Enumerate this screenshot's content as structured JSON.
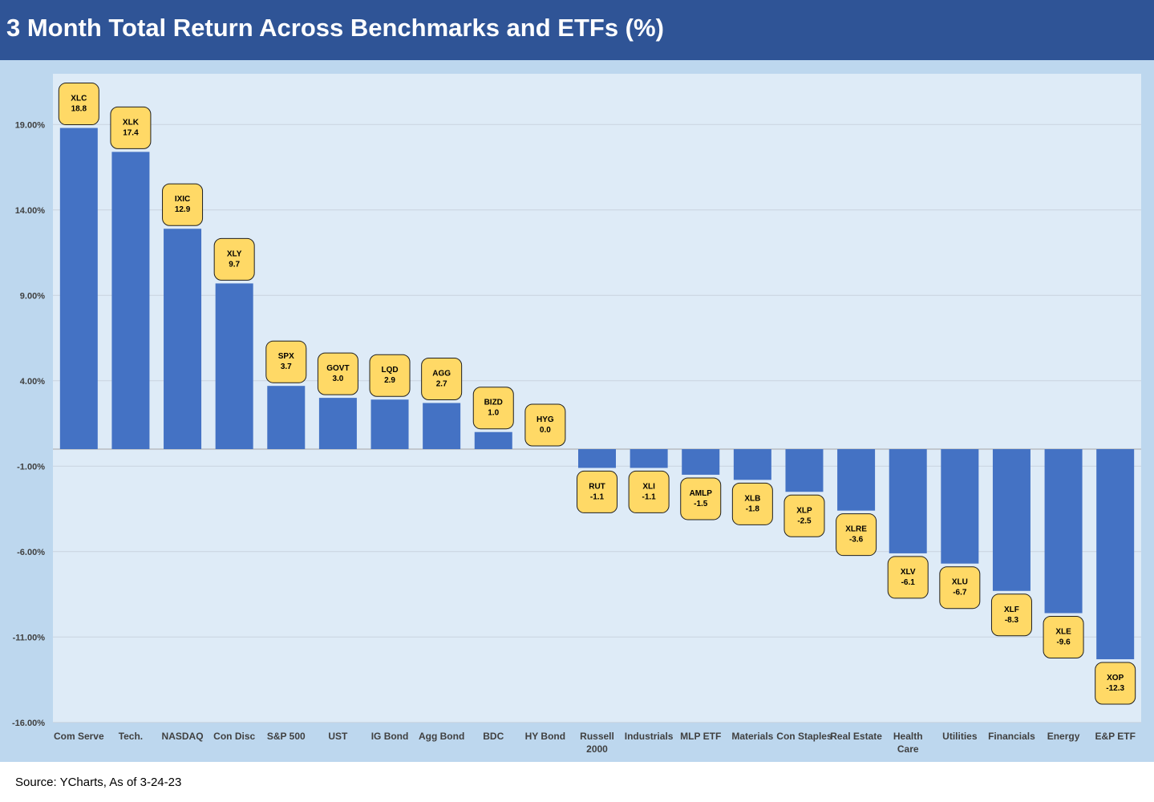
{
  "title": "3 Month Total Return Across Benchmarks and ETFs (%)",
  "source": "Source: YCharts, As of 3-24-23",
  "colors": {
    "title_bar": "#2f5496",
    "chart_bg": "#bdd7ee",
    "plot_bg": "#deebf7",
    "bar": "#4472c4",
    "label_box": "#ffd966"
  },
  "chart_data": {
    "type": "bar",
    "categories": [
      [
        "Com Serve"
      ],
      [
        "Tech."
      ],
      [
        "NASDAQ"
      ],
      [
        "Con Disc"
      ],
      [
        "S&P 500"
      ],
      [
        "UST"
      ],
      [
        "IG Bond"
      ],
      [
        "Agg Bond"
      ],
      [
        "BDC"
      ],
      [
        "HY Bond"
      ],
      [
        "Russell",
        "2000"
      ],
      [
        "Industrials"
      ],
      [
        "MLP ETF"
      ],
      [
        "Materials"
      ],
      [
        "Con Staples"
      ],
      [
        "Real Estate"
      ],
      [
        "Health",
        "Care"
      ],
      [
        "Utilities"
      ],
      [
        "Financials"
      ],
      [
        "Energy"
      ],
      [
        "E&P ETF"
      ]
    ],
    "tickers": [
      "XLC",
      "XLK",
      "IXIC",
      "XLY",
      "SPX",
      "GOVT",
      "LQD",
      "AGG",
      "BIZD",
      "HYG",
      "RUT",
      "XLI",
      "AMLP",
      "XLB",
      "XLP",
      "XLRE",
      "XLV",
      "XLU",
      "XLF",
      "XLE",
      "XOP"
    ],
    "values": [
      18.8,
      17.4,
      12.9,
      9.7,
      3.7,
      3.0,
      2.9,
      2.7,
      1.0,
      0.0,
      -1.1,
      -1.1,
      -1.5,
      -1.8,
      -2.5,
      -3.6,
      -6.1,
      -6.7,
      -8.3,
      -9.6,
      -12.3
    ],
    "value_labels": [
      "18.8",
      "17.4",
      "12.9",
      "9.7",
      "3.7",
      "3.0",
      "2.9",
      "2.7",
      "1.0",
      "0.0",
      "-1.1",
      "-1.1",
      "-1.5",
      "-1.8",
      "-2.5",
      "-3.6",
      "-6.1",
      "-6.7",
      "-8.3",
      "-9.6",
      "-12.3"
    ],
    "y_ticks": [
      19,
      14,
      9,
      4,
      -1,
      -6,
      -11,
      -16
    ],
    "y_tick_labels": [
      "19.00%",
      "14.00%",
      "9.00%",
      "4.00%",
      "-1.00%",
      "-6.00%",
      "-11.00%",
      "-16.00%"
    ],
    "ylim": [
      -16,
      22
    ],
    "grid": true,
    "legend": "none"
  }
}
